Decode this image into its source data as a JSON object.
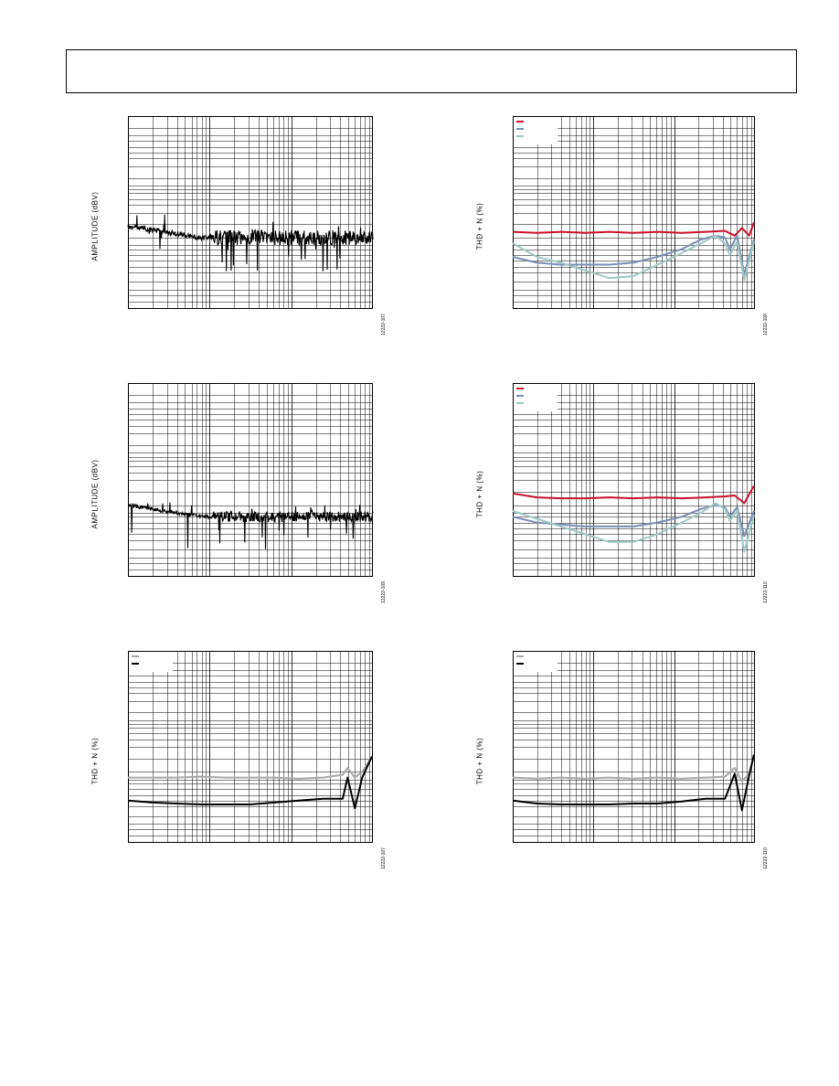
{
  "page": {
    "header": ""
  },
  "colors": {
    "red": "#c8102e",
    "blue": "#7a8fb3",
    "teal": "#9fc9c4",
    "gray": "#a8a8a8",
    "black": "#000000"
  },
  "chart_data": [
    {
      "id": "p1",
      "type": "line",
      "x_scale": "log",
      "grid": true,
      "title": "",
      "xlabel": "",
      "ylabel": "AMPLITUDE (dBV)",
      "fig_id": "12222-107",
      "legend": [],
      "series": [
        {
          "name": "",
          "color": "#000000",
          "style": "noise-spectrum",
          "seed": 7,
          "level": 0.63,
          "spread_hi": 0.13,
          "spread_lo": 0.1
        }
      ]
    },
    {
      "id": "p2",
      "type": "line",
      "x_scale": "log",
      "grid": true,
      "title": "",
      "xlabel": "",
      "ylabel": "THD + N (%)",
      "fig_id": "12222-108",
      "legend": [
        {
          "color": "#c8102e"
        },
        {
          "color": "#7a8fb3"
        },
        {
          "color": "#9fc9c4"
        }
      ],
      "series": [
        {
          "name": "",
          "color": "#c8102e",
          "points": [
            [
              0,
              0.6
            ],
            [
              0.1,
              0.605
            ],
            [
              0.2,
              0.6
            ],
            [
              0.3,
              0.605
            ],
            [
              0.4,
              0.6
            ],
            [
              0.5,
              0.605
            ],
            [
              0.6,
              0.6
            ],
            [
              0.7,
              0.605
            ],
            [
              0.8,
              0.6
            ],
            [
              0.88,
              0.595
            ],
            [
              0.92,
              0.62
            ],
            [
              0.95,
              0.58
            ],
            [
              0.98,
              0.62
            ],
            [
              1.0,
              0.55
            ]
          ]
        },
        {
          "name": "",
          "color": "#7a8fb3",
          "points": [
            [
              0,
              0.73
            ],
            [
              0.1,
              0.76
            ],
            [
              0.2,
              0.77
            ],
            [
              0.3,
              0.77
            ],
            [
              0.4,
              0.77
            ],
            [
              0.5,
              0.76
            ],
            [
              0.6,
              0.73
            ],
            [
              0.7,
              0.69
            ],
            [
              0.78,
              0.64
            ],
            [
              0.84,
              0.62
            ],
            [
              0.88,
              0.63
            ],
            [
              0.9,
              0.69
            ],
            [
              0.93,
              0.62
            ],
            [
              0.96,
              0.82
            ],
            [
              1.0,
              0.64
            ]
          ]
        },
        {
          "name": "",
          "color": "#9fc9c4",
          "points": [
            [
              0,
              0.66
            ],
            [
              0.1,
              0.73
            ],
            [
              0.2,
              0.76
            ],
            [
              0.3,
              0.8
            ],
            [
              0.4,
              0.84
            ],
            [
              0.5,
              0.83
            ],
            [
              0.6,
              0.77
            ],
            [
              0.7,
              0.71
            ],
            [
              0.78,
              0.66
            ],
            [
              0.84,
              0.62
            ],
            [
              0.88,
              0.66
            ],
            [
              0.9,
              0.72
            ],
            [
              0.93,
              0.65
            ],
            [
              0.96,
              0.85
            ],
            [
              1.0,
              0.65
            ]
          ]
        }
      ]
    },
    {
      "id": "p3",
      "type": "line",
      "x_scale": "log",
      "grid": true,
      "title": "",
      "xlabel": "",
      "ylabel": "AMPLITUDE (dBV)",
      "fig_id": "12222-109",
      "legend": [],
      "series": [
        {
          "name": "",
          "color": "#000000",
          "style": "noise-spectrum",
          "seed": 13,
          "level": 0.69,
          "spread_hi": 0.09,
          "spread_lo": 0.1
        }
      ]
    },
    {
      "id": "p4",
      "type": "line",
      "x_scale": "log",
      "grid": true,
      "title": "",
      "xlabel": "",
      "ylabel": "THD + N (%)",
      "fig_id": "12222-110",
      "legend": [
        {
          "color": "#c8102e"
        },
        {
          "color": "#7a8fb3"
        },
        {
          "color": "#9fc9c4"
        }
      ],
      "series": [
        {
          "name": "",
          "color": "#c8102e",
          "points": [
            [
              0,
              0.57
            ],
            [
              0.1,
              0.59
            ],
            [
              0.2,
              0.595
            ],
            [
              0.3,
              0.595
            ],
            [
              0.4,
              0.59
            ],
            [
              0.5,
              0.595
            ],
            [
              0.6,
              0.59
            ],
            [
              0.7,
              0.595
            ],
            [
              0.8,
              0.59
            ],
            [
              0.88,
              0.585
            ],
            [
              0.92,
              0.58
            ],
            [
              0.96,
              0.62
            ],
            [
              1.0,
              0.53
            ]
          ]
        },
        {
          "name": "",
          "color": "#7a8fb3",
          "points": [
            [
              0,
              0.69
            ],
            [
              0.1,
              0.72
            ],
            [
              0.2,
              0.73
            ],
            [
              0.3,
              0.74
            ],
            [
              0.4,
              0.74
            ],
            [
              0.5,
              0.74
            ],
            [
              0.6,
              0.72
            ],
            [
              0.7,
              0.69
            ],
            [
              0.78,
              0.65
            ],
            [
              0.84,
              0.63
            ],
            [
              0.88,
              0.64
            ],
            [
              0.9,
              0.69
            ],
            [
              0.93,
              0.64
            ],
            [
              0.96,
              0.79
            ],
            [
              1.0,
              0.66
            ]
          ]
        },
        {
          "name": "",
          "color": "#9fc9c4",
          "points": [
            [
              0,
              0.66
            ],
            [
              0.1,
              0.7
            ],
            [
              0.2,
              0.74
            ],
            [
              0.3,
              0.78
            ],
            [
              0.4,
              0.82
            ],
            [
              0.5,
              0.82
            ],
            [
              0.6,
              0.78
            ],
            [
              0.7,
              0.72
            ],
            [
              0.78,
              0.67
            ],
            [
              0.84,
              0.62
            ],
            [
              0.88,
              0.65
            ],
            [
              0.9,
              0.71
            ],
            [
              0.93,
              0.66
            ],
            [
              0.96,
              0.87
            ],
            [
              1.0,
              0.68
            ]
          ]
        }
      ]
    },
    {
      "id": "p5",
      "type": "line",
      "x_scale": "log",
      "grid": true,
      "title": "",
      "xlabel": "",
      "ylabel": "THD + N (%)",
      "fig_id": "12222-107",
      "legend": [
        {
          "color": "#a8a8a8"
        },
        {
          "color": "#000000"
        }
      ],
      "series": [
        {
          "name": "",
          "color": "#a8a8a8",
          "points": [
            [
              0,
              0.66
            ],
            [
              0.1,
              0.66
            ],
            [
              0.2,
              0.66
            ],
            [
              0.3,
              0.655
            ],
            [
              0.4,
              0.66
            ],
            [
              0.5,
              0.66
            ],
            [
              0.6,
              0.66
            ],
            [
              0.7,
              0.665
            ],
            [
              0.8,
              0.66
            ],
            [
              0.88,
              0.645
            ],
            [
              0.9,
              0.61
            ],
            [
              0.93,
              0.66
            ],
            [
              0.96,
              0.63
            ],
            [
              1.0,
              0.55
            ]
          ]
        },
        {
          "name": "",
          "color": "#000000",
          "points": [
            [
              0,
              0.78
            ],
            [
              0.1,
              0.79
            ],
            [
              0.2,
              0.795
            ],
            [
              0.3,
              0.8
            ],
            [
              0.4,
              0.8
            ],
            [
              0.5,
              0.8
            ],
            [
              0.6,
              0.79
            ],
            [
              0.7,
              0.78
            ],
            [
              0.8,
              0.77
            ],
            [
              0.88,
              0.77
            ],
            [
              0.9,
              0.66
            ],
            [
              0.93,
              0.82
            ],
            [
              0.96,
              0.66
            ],
            [
              1.0,
              0.55
            ]
          ]
        }
      ]
    },
    {
      "id": "p6",
      "type": "line",
      "x_scale": "log",
      "grid": true,
      "title": "",
      "xlabel": "",
      "ylabel": "THD + N (%)",
      "fig_id": "12222-110",
      "legend": [
        {
          "color": "#a8a8a8"
        },
        {
          "color": "#000000"
        }
      ],
      "series": [
        {
          "name": "",
          "color": "#a8a8a8",
          "points": [
            [
              0,
              0.66
            ],
            [
              0.1,
              0.665
            ],
            [
              0.2,
              0.66
            ],
            [
              0.3,
              0.665
            ],
            [
              0.4,
              0.66
            ],
            [
              0.5,
              0.665
            ],
            [
              0.6,
              0.66
            ],
            [
              0.7,
              0.665
            ],
            [
              0.8,
              0.66
            ],
            [
              0.88,
              0.655
            ],
            [
              0.92,
              0.61
            ],
            [
              0.95,
              0.68
            ],
            [
              0.98,
              0.64
            ],
            [
              1.0,
              0.54
            ]
          ]
        },
        {
          "name": "",
          "color": "#000000",
          "points": [
            [
              0,
              0.78
            ],
            [
              0.1,
              0.795
            ],
            [
              0.2,
              0.8
            ],
            [
              0.3,
              0.8
            ],
            [
              0.4,
              0.8
            ],
            [
              0.5,
              0.795
            ],
            [
              0.6,
              0.795
            ],
            [
              0.7,
              0.785
            ],
            [
              0.8,
              0.77
            ],
            [
              0.88,
              0.77
            ],
            [
              0.92,
              0.64
            ],
            [
              0.95,
              0.83
            ],
            [
              0.98,
              0.65
            ],
            [
              1.0,
              0.54
            ]
          ]
        }
      ]
    }
  ]
}
